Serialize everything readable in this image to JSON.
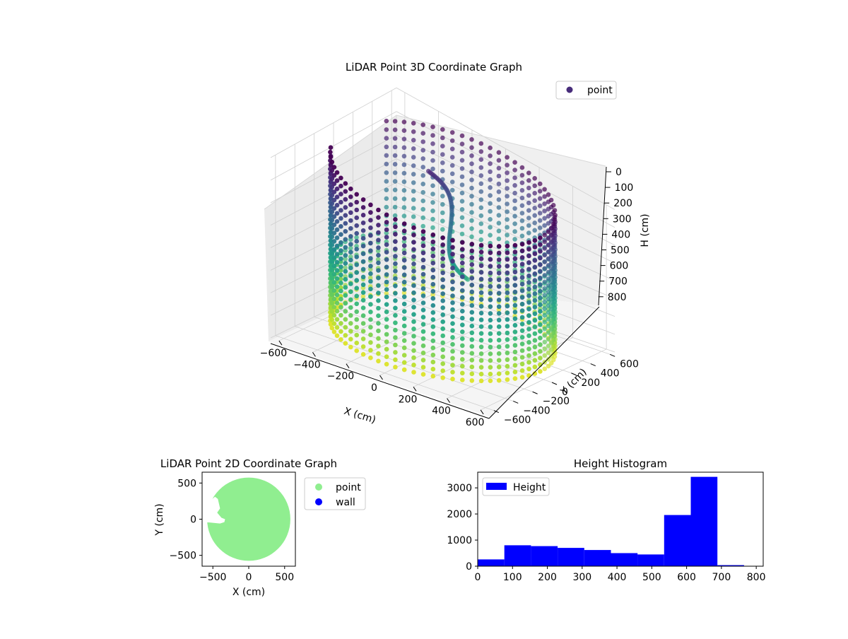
{
  "chart_data": [
    {
      "type": "scatter",
      "variant": "3d",
      "title": "LiDAR Point 3D Coordinate Graph",
      "xlabel": "X (cm)",
      "ylabel": "Y (cm)",
      "zlabel": "H (cm)",
      "x_ticks": [
        -600,
        -400,
        -200,
        0,
        200,
        400,
        600
      ],
      "y_ticks": [
        -600,
        -400,
        -200,
        0,
        200,
        400,
        600
      ],
      "z_ticks": [
        0,
        100,
        200,
        300,
        400,
        500,
        600,
        700,
        800
      ],
      "xlim": [
        -650,
        650
      ],
      "ylim": [
        -650,
        650
      ],
      "zlim": [
        0,
        800
      ],
      "z_inverted": true,
      "colormap": "viridis",
      "legend": {
        "entries": [
          "point"
        ],
        "placement": "top-right"
      },
      "grid": true,
      "series": [
        {
          "name": "point",
          "shape": "cylindrical wall",
          "center": [
            0,
            0
          ],
          "radius_cm": 580,
          "height_range_cm": [
            0,
            800
          ],
          "color_by": "height",
          "outliers": [
            {
              "x": -650,
              "y": -20,
              "h": 700
            },
            {
              "x": -560,
              "y": -130,
              "h": 720
            }
          ],
          "interior_structure": {
            "x_range": [
              -200,
              50
            ],
            "y_range": [
              100,
              300
            ],
            "h_range": [
              80,
              500
            ]
          }
        }
      ]
    },
    {
      "type": "scatter",
      "title": "LiDAR Point 2D Coordinate Graph",
      "xlabel": "X (cm)",
      "ylabel": "Y (cm)",
      "x_ticks": [
        -500,
        0,
        500
      ],
      "y_ticks": [
        -500,
        0,
        500
      ],
      "xlim": [
        -650,
        650
      ],
      "ylim": [
        -650,
        650
      ],
      "legend": {
        "entries": [
          "point",
          "wall"
        ],
        "placement": "outside-right"
      },
      "series": [
        {
          "name": "point",
          "color": "#90ee90",
          "shape": "filled disc",
          "center": [
            0,
            0
          ],
          "radius": 580,
          "gap_polygon": [
            [
              -650,
              255
            ],
            [
              -600,
              290
            ],
            [
              -520,
              270
            ],
            [
              -470,
              310
            ],
            [
              -430,
              280
            ],
            [
              -400,
              150
            ],
            [
              -440,
              90
            ],
            [
              -380,
              20
            ],
            [
              -330,
              0
            ],
            [
              -340,
              -40
            ],
            [
              -400,
              -60
            ],
            [
              -550,
              -45
            ],
            [
              -650,
              -40
            ]
          ]
        },
        {
          "name": "wall",
          "color": "#0000ff",
          "values": []
        }
      ]
    },
    {
      "type": "bar",
      "variant": "histogram",
      "title": "Height Histogram",
      "xlabel": "",
      "ylabel": "",
      "x_ticks": [
        0,
        100,
        200,
        300,
        400,
        500,
        600,
        700,
        800
      ],
      "y_ticks": [
        0,
        1000,
        2000,
        3000
      ],
      "xlim": [
        0,
        820
      ],
      "ylim": [
        0,
        3600
      ],
      "bin_edges": [
        0,
        76.5,
        153,
        229.5,
        306,
        382.5,
        459,
        535.5,
        612,
        688.5,
        765
      ],
      "values": [
        260,
        800,
        770,
        700,
        620,
        500,
        450,
        1960,
        3420,
        40
      ],
      "legend": {
        "entries": [
          "Height"
        ],
        "placement": "top-left"
      },
      "series": [
        {
          "name": "Height",
          "color": "#0000ff"
        }
      ]
    }
  ]
}
